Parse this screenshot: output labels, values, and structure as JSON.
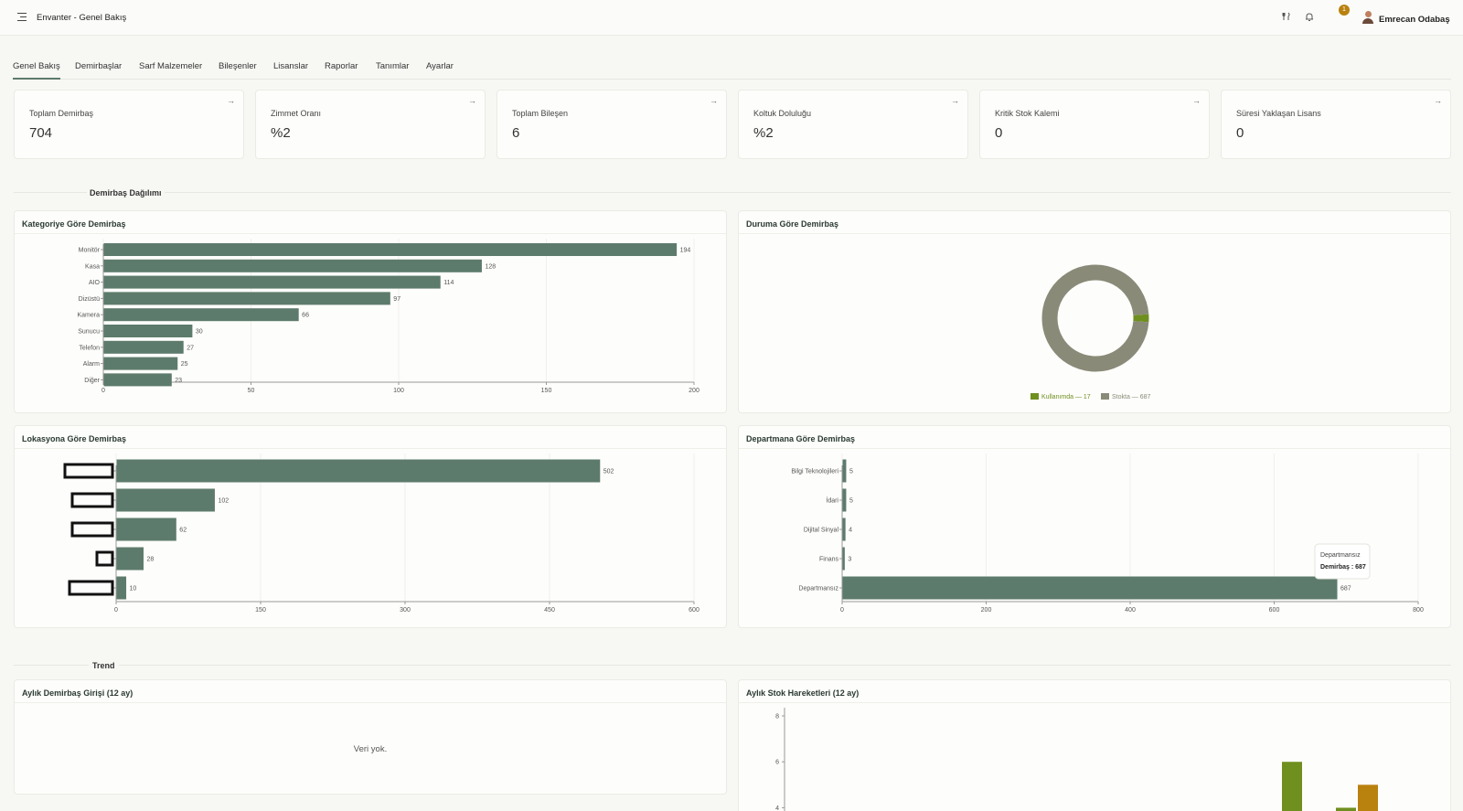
{
  "topbar": {
    "title": "Envanter - Genel Bakış",
    "notification_count": "1",
    "user_name": "Emrecan Odabaş"
  },
  "tabs": [
    {
      "label": "Genel Bakış",
      "active": true
    },
    {
      "label": "Demirbaşlar",
      "active": false
    },
    {
      "label": "Sarf Malzemeler",
      "active": false
    },
    {
      "label": "Bileşenler",
      "active": false
    },
    {
      "label": "Lisanslar",
      "active": false
    },
    {
      "label": "Raporlar",
      "active": false
    },
    {
      "label": "Tanımlar",
      "active": false
    },
    {
      "label": "Ayarlar",
      "active": false
    }
  ],
  "kpis": [
    {
      "label": "Toplam Demirbaş",
      "value": "704"
    },
    {
      "label": "Zimmet Oranı",
      "value": "%2"
    },
    {
      "label": "Toplam Bileşen",
      "value": "6"
    },
    {
      "label": "Koltuk Doluluğu",
      "value": "%2"
    },
    {
      "label": "Kritik Stok Kalemi",
      "value": "0"
    },
    {
      "label": "Süresi Yaklaşan Lisans",
      "value": "0"
    }
  ],
  "sections": {
    "distribution": "Demirbaş Dağılımı",
    "trend": "Trend"
  },
  "panels": {
    "category": "Kategoriye Göre Demirbaş",
    "status": "Duruma Göre Demirbaş",
    "location": "Lokasyona Göre Demirbaş",
    "department": "Departmana Göre Demirbaş",
    "monthly_entry": "Aylık Demirbaş Girişi (12 ay)",
    "monthly_stock": "Aylık Stok Hareketleri (12 ay)",
    "empty_text": "Veri yok."
  },
  "colors": {
    "bar": "#5d7b6c",
    "in_use": "#6f8f1f",
    "in_stock": "#8a8a78",
    "accent_orange": "#b9820f"
  },
  "chart_data": [
    {
      "id": "category",
      "type": "bar",
      "orientation": "horizontal",
      "categories": [
        "Monitör",
        "Kasa",
        "AIO",
        "Dizüstü",
        "Kamera",
        "Sunucu",
        "Telefon",
        "Alarm",
        "Diğer"
      ],
      "values": [
        194,
        128,
        114,
        97,
        66,
        30,
        27,
        25,
        23
      ],
      "xlim": [
        0,
        200
      ],
      "xticks": [
        0,
        50,
        100,
        150,
        200
      ]
    },
    {
      "id": "status",
      "type": "pie",
      "donut": true,
      "slices": [
        {
          "label": "Kullanımda — 17",
          "value": 17,
          "color": "#6f8f1f"
        },
        {
          "label": "Stokta — 687",
          "value": 687,
          "color": "#8a8a78"
        }
      ],
      "legend": "bottom"
    },
    {
      "id": "location",
      "type": "bar",
      "orientation": "horizontal",
      "categories": [
        "",
        "",
        "",
        "",
        ""
      ],
      "values": [
        502,
        102,
        62,
        28,
        10
      ],
      "xlim": [
        0,
        600
      ],
      "xticks": [
        0,
        150,
        300,
        450,
        600
      ]
    },
    {
      "id": "department",
      "type": "bar",
      "orientation": "horizontal",
      "categories": [
        "Bilgi Teknolojileri",
        "İdari",
        "Dijital Sinyal",
        "Finans",
        "Departmansız"
      ],
      "values": [
        5,
        5,
        4,
        3,
        687
      ],
      "xlim": [
        0,
        800
      ],
      "xticks": [
        0,
        200,
        400,
        600,
        800
      ],
      "tooltip": {
        "title": "Departmansız",
        "text": "Demirbaş : 687"
      }
    },
    {
      "id": "monthly_stock",
      "type": "bar",
      "yticks": [
        4,
        6,
        8
      ],
      "ylim": [
        3.5,
        8
      ],
      "series": [
        {
          "values": [
            6,
            4
          ],
          "color": "#6f8f1f"
        },
        {
          "values": [
            5
          ],
          "color": "#b9820f"
        }
      ]
    }
  ]
}
